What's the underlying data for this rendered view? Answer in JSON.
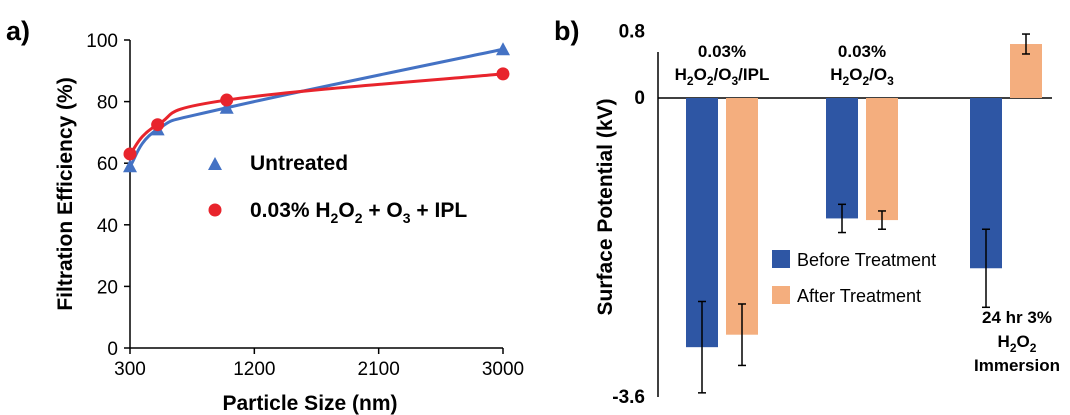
{
  "panels": [
    {
      "panel_label": "a)",
      "chart_data": {
        "type": "line",
        "xlabel": "Particle Size (nm)",
        "ylabel": "Filtration Efficiency (%)",
        "xlim": [
          300,
          3000
        ],
        "ylim": [
          0,
          100
        ],
        "xticks": [
          300,
          1200,
          2100,
          3000
        ],
        "yticks": [
          0,
          20,
          40,
          60,
          80,
          100
        ],
        "grid": false,
        "legend_position": "center",
        "series": [
          {
            "name": "Untreated",
            "color": "#4472c4",
            "marker": "triangle",
            "x": [
              300,
              500,
              1000,
              3000
            ],
            "y": [
              59,
              71,
              78,
              97
            ]
          },
          {
            "name": "0.03% H2O2 + O3 + IPL",
            "color": "#e8242c",
            "marker": "circle",
            "x": [
              300,
              500,
              1000,
              3000
            ],
            "y": [
              63,
              72.5,
              80.5,
              89
            ]
          }
        ]
      }
    },
    {
      "panel_label": "b)",
      "chart_data": {
        "type": "bar",
        "ylabel": "Surface Potential (kV)",
        "ylim": [
          -3.6,
          0.8
        ],
        "yticks": [
          -3.6,
          0,
          0.8
        ],
        "grid": false,
        "legend_position": "center",
        "groups": [
          "0.03% H2O2/O3/IPL",
          "0.03% H2O2/O3",
          "24 hr 3% H2O2 Immersion"
        ],
        "series": [
          {
            "name": "Before Treatment",
            "color": "#2e56a4",
            "values": [
              -3.0,
              -1.45,
              -2.05
            ],
            "errors": [
              0.55,
              0.17,
              0.47
            ]
          },
          {
            "name": "After Treatment",
            "color": "#f4ae7e",
            "values": [
              -2.85,
              -1.47,
              0.65
            ],
            "errors": [
              0.37,
              0.11,
              0.12
            ]
          }
        ]
      }
    }
  ]
}
